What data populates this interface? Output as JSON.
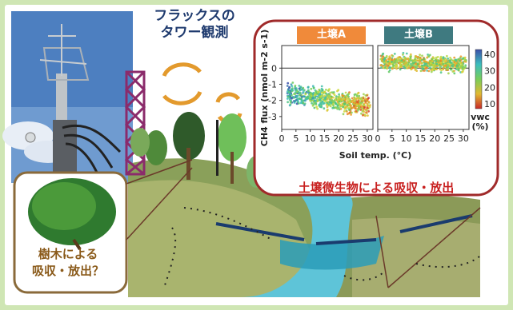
{
  "title": {
    "line1": "フラックスの",
    "line2": "タワー観測"
  },
  "tree_label": {
    "line1": "樹木による",
    "line2": "吸収・放出？"
  },
  "soil_caption": "土壌微生物による吸収・放出",
  "panels": [
    {
      "label": "土壌A",
      "color": "#f08a3a"
    },
    {
      "label": "土壌B",
      "color": "#3f7a80"
    }
  ],
  "chart_data": {
    "type": "scatter",
    "xlabel": "Soil temp. (°C)",
    "ylabel": "CH4 flux (nmol m-2 s-1)",
    "x_ticks": [
      "0",
      "5",
      "10",
      "15",
      "20",
      "25",
      "30"
    ],
    "y_ticks": [
      "0",
      "-1",
      "-2",
      "-3"
    ],
    "xlim": [
      0,
      32
    ],
    "ylim": [
      -3.8,
      1.4
    ],
    "colorbar": {
      "label_line1": "vwc",
      "label_line2": "(%)",
      "ticks": [
        "40",
        "30",
        "20",
        "10"
      ]
    },
    "series": [
      {
        "x_range": [
          2,
          31
        ],
        "y_center": -1.9,
        "spread": 0.6,
        "slope": -0.03
      },
      {
        "x_range": [
          1,
          31
        ],
        "y_center": 0.3,
        "spread": 0.45,
        "slope": -0.005
      }
    ]
  }
}
